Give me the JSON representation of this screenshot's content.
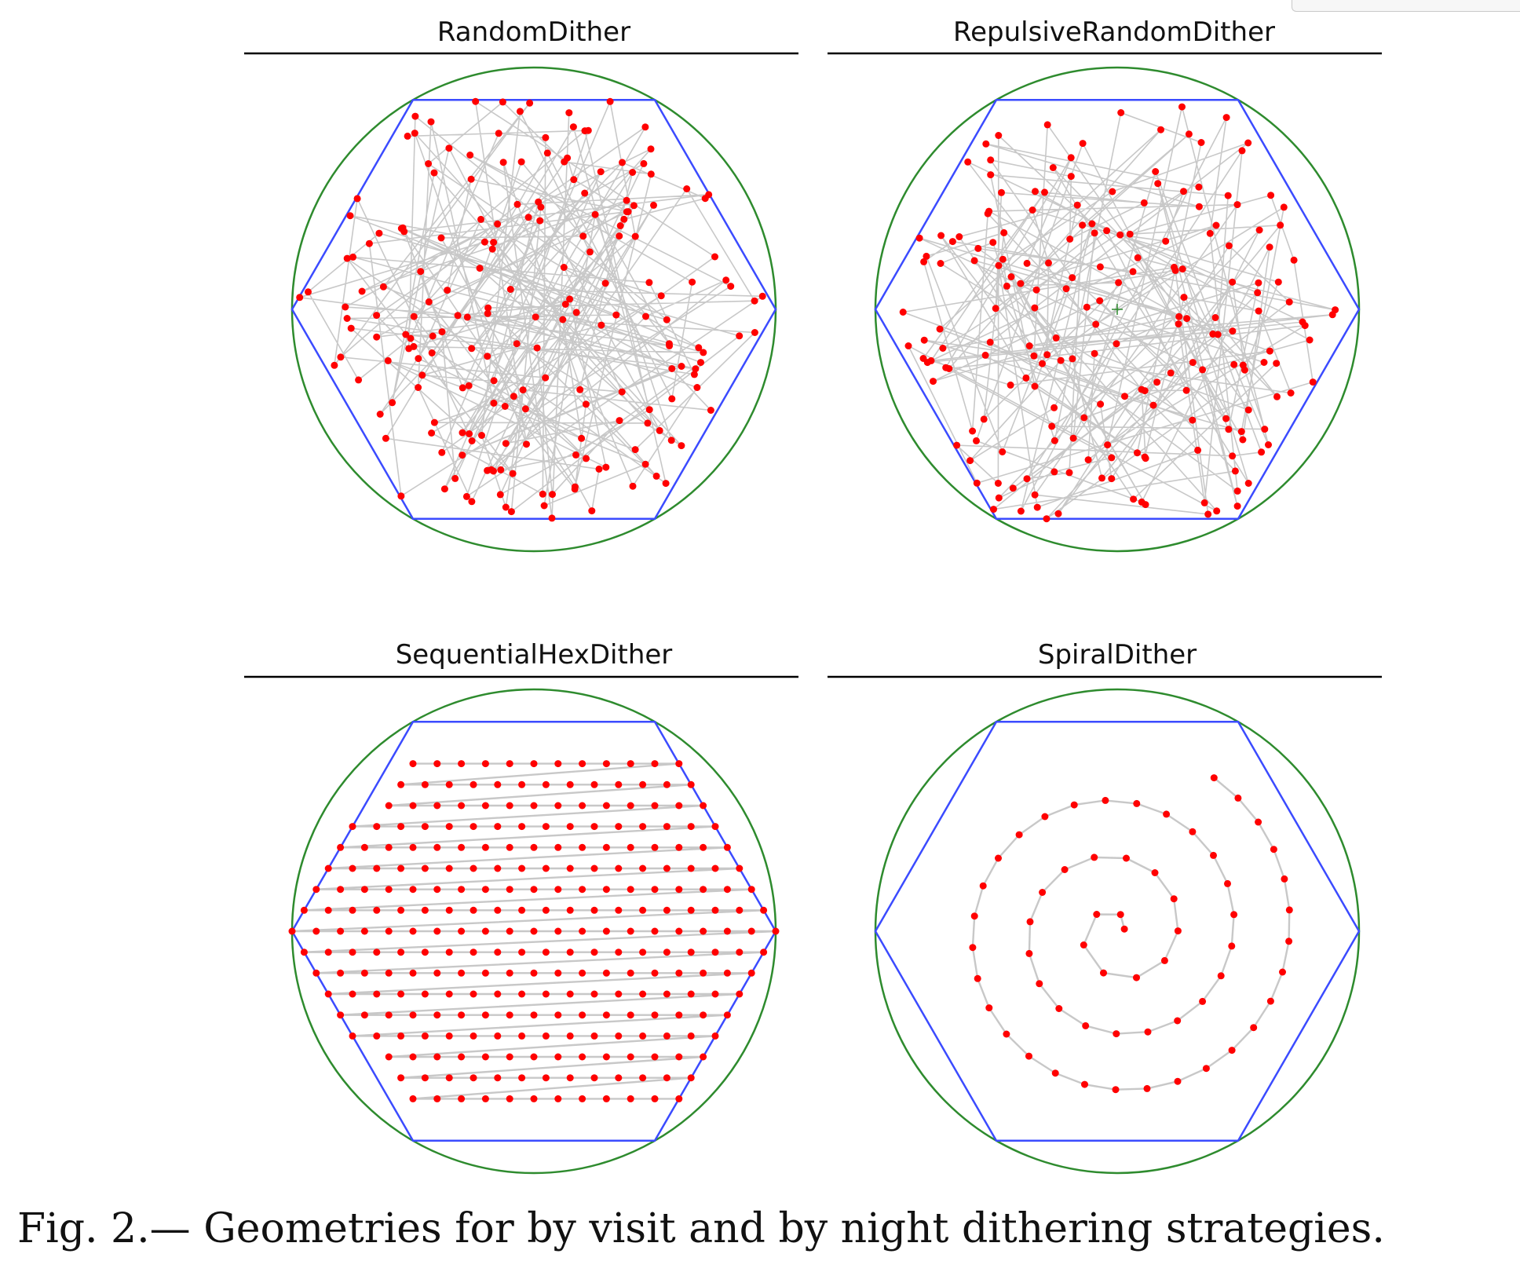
{
  "figure": {
    "caption": "Fig. 2.— Geometries for by visit and by night dithering strategies."
  },
  "colors": {
    "circle": "#2e8b2e",
    "hexagon": "#3b4bff",
    "path": "#c8c8c8",
    "points": "#ff0000",
    "title_rule": "#000000"
  },
  "chart_data": [
    {
      "type": "scatter",
      "title": "RandomDither",
      "xlim": [
        -1,
        1
      ],
      "ylim": [
        -1,
        1
      ],
      "grid": false,
      "axes_visible": false,
      "shapes": [
        "circle",
        "hexagon"
      ],
      "center_marker": false,
      "path": "random",
      "num_points": 200,
      "seed": 7
    },
    {
      "type": "scatter",
      "title": "RepulsiveRandomDither",
      "xlim": [
        -1,
        1
      ],
      "ylim": [
        -1,
        1
      ],
      "grid": false,
      "axes_visible": false,
      "shapes": [
        "circle",
        "hexagon"
      ],
      "center_marker": true,
      "path": "random",
      "num_points": 200,
      "seed": 19
    },
    {
      "type": "scatter",
      "title": "SequentialHexDither",
      "xlim": [
        -1,
        1
      ],
      "ylim": [
        -1,
        1
      ],
      "grid": false,
      "axes_visible": false,
      "shapes": [
        "circle",
        "hexagon"
      ],
      "center_marker": false,
      "path": "sequential-rows",
      "rows": 17,
      "row_spacing": 0.1
    },
    {
      "type": "scatter",
      "title": "SpiralDither",
      "xlim": [
        -1,
        1
      ],
      "ylim": [
        -1,
        1
      ],
      "grid": false,
      "axes_visible": false,
      "shapes": [
        "circle",
        "hexagon"
      ],
      "center_marker": false,
      "path": "spiral",
      "num_points": 60,
      "spiral_growth": 0.105,
      "spiral_step": 0.235
    }
  ]
}
